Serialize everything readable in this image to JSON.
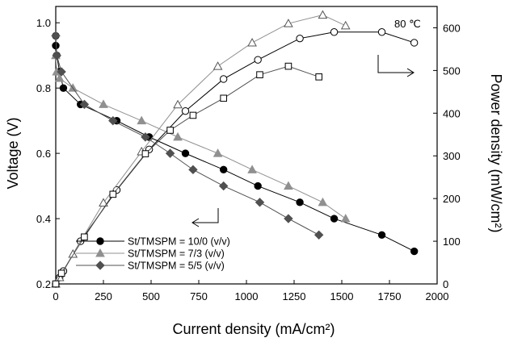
{
  "chart_data": {
    "type": "line",
    "xlabel": "Current density (mA/cm²)",
    "ylabel_left": "Voltage (V)",
    "ylabel_right": "Power density (mW/cm²)",
    "xlim": [
      0,
      2000
    ],
    "ylim_left": [
      0.2,
      1.05
    ],
    "ylim_right": [
      0,
      650
    ],
    "x_ticks": [
      0,
      250,
      500,
      750,
      1000,
      1250,
      1500,
      1750,
      2000
    ],
    "y_left_ticks": [
      0.2,
      0.4,
      0.6,
      0.8,
      1.0
    ],
    "y_left_tick_labels": [
      "0.2",
      "0.4",
      "0.6",
      "0.8",
      "1.0"
    ],
    "y_right_ticks": [
      0,
      100,
      200,
      300,
      400,
      500,
      600
    ],
    "annotation": "80 ℃",
    "legend_position": "lower-left",
    "grid": false,
    "series": [
      {
        "name": "St/TMSPM = 10/0 (v/v)",
        "marker": "circle",
        "color": "#000000",
        "voltage": {
          "x": [
            0,
            0,
            5,
            20,
            40,
            130,
            320,
            490,
            680,
            880,
            1060,
            1280,
            1460,
            1710,
            1880
          ],
          "y": [
            0.96,
            0.93,
            0.9,
            0.85,
            0.8,
            0.75,
            0.7,
            0.65,
            0.6,
            0.55,
            0.5,
            0.45,
            0.4,
            0.35,
            0.3
          ]
        },
        "power": {
          "x": [
            0,
            20,
            40,
            130,
            320,
            490,
            680,
            880,
            1060,
            1280,
            1460,
            1710,
            1880
          ],
          "y": [
            0,
            15,
            30,
            100,
            220,
            315,
            405,
            480,
            525,
            575,
            590,
            590,
            565
          ]
        }
      },
      {
        "name": "St/TMSPM = 7/3 (v/v)",
        "marker": "triangle",
        "color": "#909090",
        "voltage": {
          "x": [
            0,
            5,
            20,
            90,
            250,
            450,
            640,
            850,
            1030,
            1220,
            1400,
            1520
          ],
          "y": [
            0.9,
            0.85,
            0.83,
            0.8,
            0.75,
            0.7,
            0.65,
            0.6,
            0.55,
            0.5,
            0.45,
            0.4
          ]
        },
        "power": {
          "x": [
            0,
            20,
            90,
            250,
            450,
            640,
            850,
            1030,
            1220,
            1400,
            1520
          ],
          "y": [
            0,
            15,
            70,
            190,
            310,
            420,
            510,
            565,
            610,
            630,
            605
          ]
        }
      },
      {
        "name": "St/TMSPM = 5/5 (v/v)",
        "marker": "diamond",
        "color": "#505050",
        "voltage": {
          "x": [
            0,
            5,
            30,
            150,
            300,
            470,
            600,
            720,
            880,
            1070,
            1220,
            1380
          ],
          "y": [
            0.96,
            0.9,
            0.85,
            0.75,
            0.7,
            0.65,
            0.6,
            0.55,
            0.5,
            0.45,
            0.4,
            0.35
          ]
        },
        "power": {
          "x": [
            0,
            30,
            150,
            300,
            470,
            600,
            720,
            880,
            1070,
            1220,
            1380
          ],
          "y": [
            0,
            25,
            110,
            210,
            305,
            360,
            395,
            435,
            490,
            510,
            485
          ]
        }
      }
    ]
  }
}
